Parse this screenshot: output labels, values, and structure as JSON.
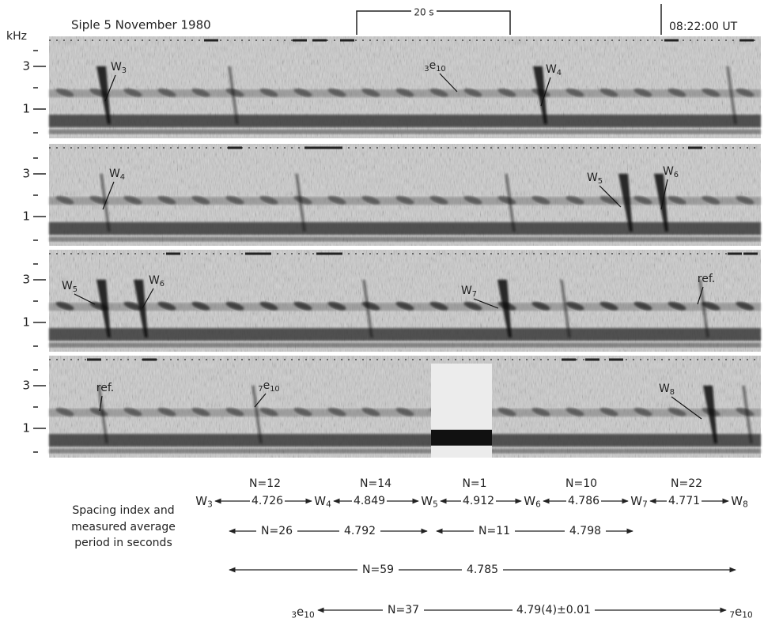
{
  "header": {
    "title": "Siple 5 November 1980",
    "scale": "20 s",
    "time": "08:22:00 UT",
    "unit": "kHz"
  },
  "panels": [
    {
      "ticks": [
        "3",
        "1"
      ],
      "labels": [
        {
          "base": "W",
          "sub": "3"
        },
        {
          "pre": "3",
          "base": "e",
          "sub": "10"
        },
        {
          "base": "W",
          "sub": "4"
        }
      ]
    },
    {
      "ticks": [
        "3",
        "1"
      ],
      "labels": [
        {
          "base": "W",
          "sub": "4"
        },
        {
          "base": "W",
          "sub": "5"
        },
        {
          "base": "W",
          "sub": "6"
        }
      ]
    },
    {
      "ticks": [
        "3",
        "1"
      ],
      "labels": [
        {
          "base": "W",
          "sub": "5"
        },
        {
          "base": "W",
          "sub": "6"
        },
        {
          "base": "W",
          "sub": "7"
        },
        {
          "base": "ref."
        }
      ]
    },
    {
      "ticks": [
        "3",
        "1"
      ],
      "labels": [
        {
          "base": "ref."
        },
        {
          "pre": "7",
          "base": "e",
          "sub": "10"
        },
        {
          "base": "W",
          "sub": "8"
        }
      ]
    }
  ],
  "spacing": {
    "caption": [
      "Spacing index and",
      "measured average",
      "period in seconds"
    ],
    "counts": [
      "N=12",
      "N=14",
      "N=1",
      "N=10",
      "N=22"
    ],
    "nodes": [
      {
        "base": "W",
        "sub": "3"
      },
      {
        "base": "W",
        "sub": "4"
      },
      {
        "base": "W",
        "sub": "5"
      },
      {
        "base": "W",
        "sub": "6"
      },
      {
        "base": "W",
        "sub": "7"
      },
      {
        "base": "W",
        "sub": "8"
      }
    ],
    "periods": [
      "4.726",
      "4.849",
      "4.912",
      "4.786",
      "4.771"
    ],
    "groups": [
      {
        "count": "N=26",
        "period": "4.792"
      },
      {
        "count": "N=11",
        "period": "4.798"
      },
      {
        "count": "N=59",
        "period": "4.785"
      },
      {
        "count": "N=37",
        "period": "4.79(4)±0.01",
        "from": {
          "pre": "3",
          "base": "e",
          "sub": "10"
        },
        "to": {
          "pre": "7",
          "base": "e",
          "sub": "10"
        }
      }
    ]
  }
}
